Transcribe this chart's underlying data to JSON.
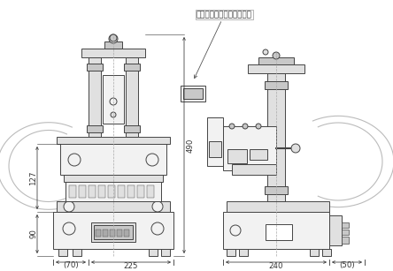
{
  "bg_color": "#ffffff",
  "line_color": "#444444",
  "dim_color": "#333333",
  "fill_light": "#f2f2f2",
  "fill_mid": "#e0e0e0",
  "fill_dark": "#c8c8c8",
  "annotation_text": "カウンター（オプション）",
  "dim_labels": {
    "height_490": "490",
    "height_127": "127",
    "height_90": "90",
    "width_70": "(70)",
    "width_225": "225",
    "width_240": "240",
    "width_50": "(50)"
  }
}
